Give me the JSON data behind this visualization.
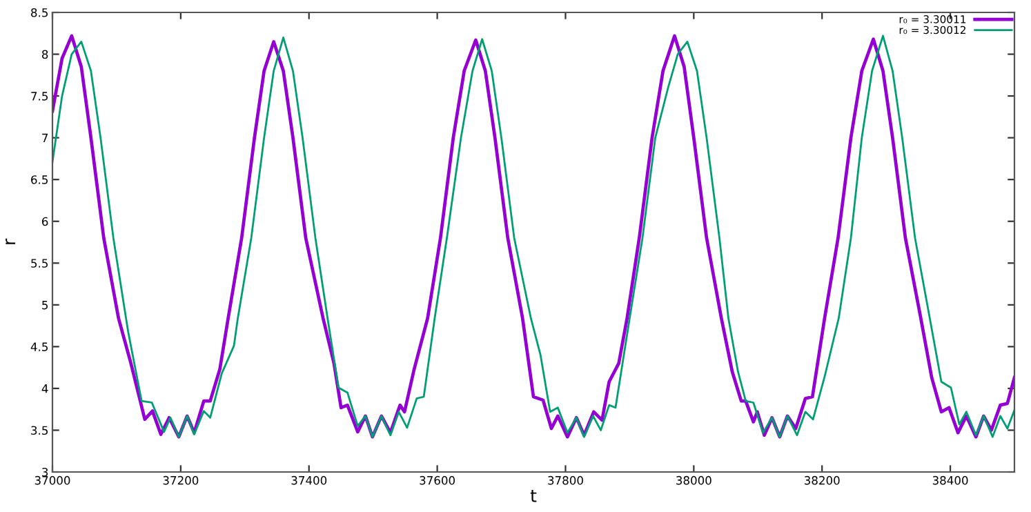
{
  "chart_data": {
    "type": "line",
    "xlabel": "t",
    "ylabel": "r",
    "xlim": [
      37000,
      38500
    ],
    "xticks": [
      37000,
      37200,
      37400,
      37600,
      37800,
      38000,
      38200,
      38400
    ],
    "ylim": [
      3,
      8.5
    ],
    "yticks": [
      3,
      3.5,
      4,
      4.5,
      5,
      5.5,
      6,
      6.5,
      7,
      7.5,
      8,
      8.5
    ],
    "grid": false,
    "legend": "top right",
    "marker": "none",
    "line_style": "solid",
    "series": [
      {
        "name": "r₀ = 3.30011",
        "color": "#9400d3",
        "x": [
          37000,
          37015,
          37030,
          37045,
          37060,
          37080,
          37103,
          37122,
          37144,
          37156,
          37169,
          37182,
          37197,
          37210,
          37221,
          37236,
          37246,
          37261,
          37274,
          37295,
          37315,
          37330,
          37345,
          37360,
          37375,
          37395,
          37422,
          37439,
          37450,
          37460,
          37476,
          37488,
          37499,
          37513,
          37527,
          37542,
          37549,
          37564,
          37585,
          37605,
          37625,
          37642,
          37660,
          37675,
          37690,
          37710,
          37733,
          37750,
          37765,
          37778,
          37788,
          37803,
          37817,
          37829,
          37844,
          37857,
          37868,
          37883,
          37896,
          37915,
          37935,
          37952,
          37970,
          37985,
          38000,
          38020,
          38043,
          38060,
          38074,
          38081,
          38093,
          38099,
          38110,
          38122,
          38134,
          38146,
          38159,
          38174,
          38185,
          38204,
          38225,
          38245,
          38262,
          38280,
          38295,
          38310,
          38330,
          38354,
          38371,
          38386,
          38398,
          38412,
          38425,
          38440,
          38452,
          38464,
          38478,
          38489,
          38500
        ],
        "values": [
          7.32,
          7.95,
          8.22,
          7.85,
          7.0,
          5.8,
          4.84,
          4.31,
          3.63,
          3.73,
          3.45,
          3.65,
          3.42,
          3.67,
          3.47,
          3.85,
          3.85,
          4.23,
          4.84,
          5.8,
          7.0,
          7.8,
          8.15,
          7.8,
          7.0,
          5.8,
          4.84,
          4.3,
          3.77,
          3.8,
          3.48,
          3.67,
          3.42,
          3.67,
          3.47,
          3.8,
          3.72,
          4.23,
          4.84,
          5.8,
          7.0,
          7.8,
          8.17,
          7.8,
          7.0,
          5.8,
          4.84,
          3.9,
          3.86,
          3.52,
          3.67,
          3.42,
          3.65,
          3.44,
          3.72,
          3.62,
          4.08,
          4.3,
          4.84,
          5.8,
          7.0,
          7.8,
          8.22,
          7.85,
          7.0,
          5.8,
          4.84,
          4.2,
          3.85,
          3.85,
          3.6,
          3.72,
          3.44,
          3.65,
          3.42,
          3.67,
          3.52,
          3.88,
          3.9,
          4.84,
          5.8,
          7.0,
          7.8,
          8.18,
          7.8,
          7.0,
          5.8,
          4.84,
          4.13,
          3.72,
          3.77,
          3.47,
          3.67,
          3.42,
          3.67,
          3.5,
          3.8,
          3.82,
          4.13
        ]
      },
      {
        "name": "r₀ = 3.30012",
        "color": "#009e73",
        "x": [
          37000,
          37015,
          37030,
          37045,
          37060,
          37075,
          37095,
          37118,
          37139,
          37155,
          37174,
          37184,
          37197,
          37210,
          37221,
          37236,
          37246,
          37264,
          37283,
          37289,
          37310,
          37330,
          37345,
          37360,
          37375,
          37390,
          37410,
          37429,
          37446,
          37460,
          37476,
          37488,
          37499,
          37513,
          37527,
          37540,
          37553,
          37568,
          37579,
          37596,
          37615,
          37637,
          37655,
          37670,
          37685,
          37700,
          37720,
          37746,
          37761,
          37776,
          37788,
          37803,
          37817,
          37829,
          37843,
          37855,
          37868,
          37878,
          37900,
          37920,
          37940,
          37960,
          37975,
          37990,
          38005,
          38020,
          38040,
          38054,
          38069,
          38081,
          38093,
          38108,
          38122,
          38134,
          38146,
          38161,
          38174,
          38186,
          38204,
          38226,
          38245,
          38262,
          38278,
          38295,
          38310,
          38325,
          38345,
          38368,
          38386,
          38401,
          38414,
          38425,
          38440,
          38452,
          38466,
          38478,
          38489,
          38500
        ],
        "values": [
          6.71,
          7.5,
          8.0,
          8.15,
          7.8,
          7.0,
          5.8,
          4.68,
          3.85,
          3.83,
          3.48,
          3.65,
          3.42,
          3.67,
          3.45,
          3.73,
          3.65,
          4.18,
          4.51,
          4.84,
          5.8,
          7.0,
          7.8,
          8.2,
          7.8,
          7.0,
          5.8,
          4.84,
          4.01,
          3.95,
          3.55,
          3.67,
          3.42,
          3.67,
          3.44,
          3.72,
          3.53,
          3.88,
          3.9,
          4.84,
          5.8,
          7.0,
          7.8,
          8.18,
          7.8,
          7.0,
          5.8,
          4.84,
          4.4,
          3.72,
          3.77,
          3.47,
          3.65,
          3.42,
          3.67,
          3.5,
          3.8,
          3.77,
          4.84,
          5.8,
          7.0,
          7.6,
          8.0,
          8.15,
          7.8,
          7.0,
          5.8,
          4.84,
          4.2,
          3.85,
          3.83,
          3.47,
          3.65,
          3.42,
          3.67,
          3.44,
          3.72,
          3.63,
          4.14,
          4.84,
          5.8,
          7.0,
          7.8,
          8.22,
          7.8,
          7.0,
          5.8,
          4.84,
          4.08,
          4.01,
          3.57,
          3.72,
          3.44,
          3.67,
          3.42,
          3.67,
          3.52,
          3.74
        ]
      }
    ]
  }
}
